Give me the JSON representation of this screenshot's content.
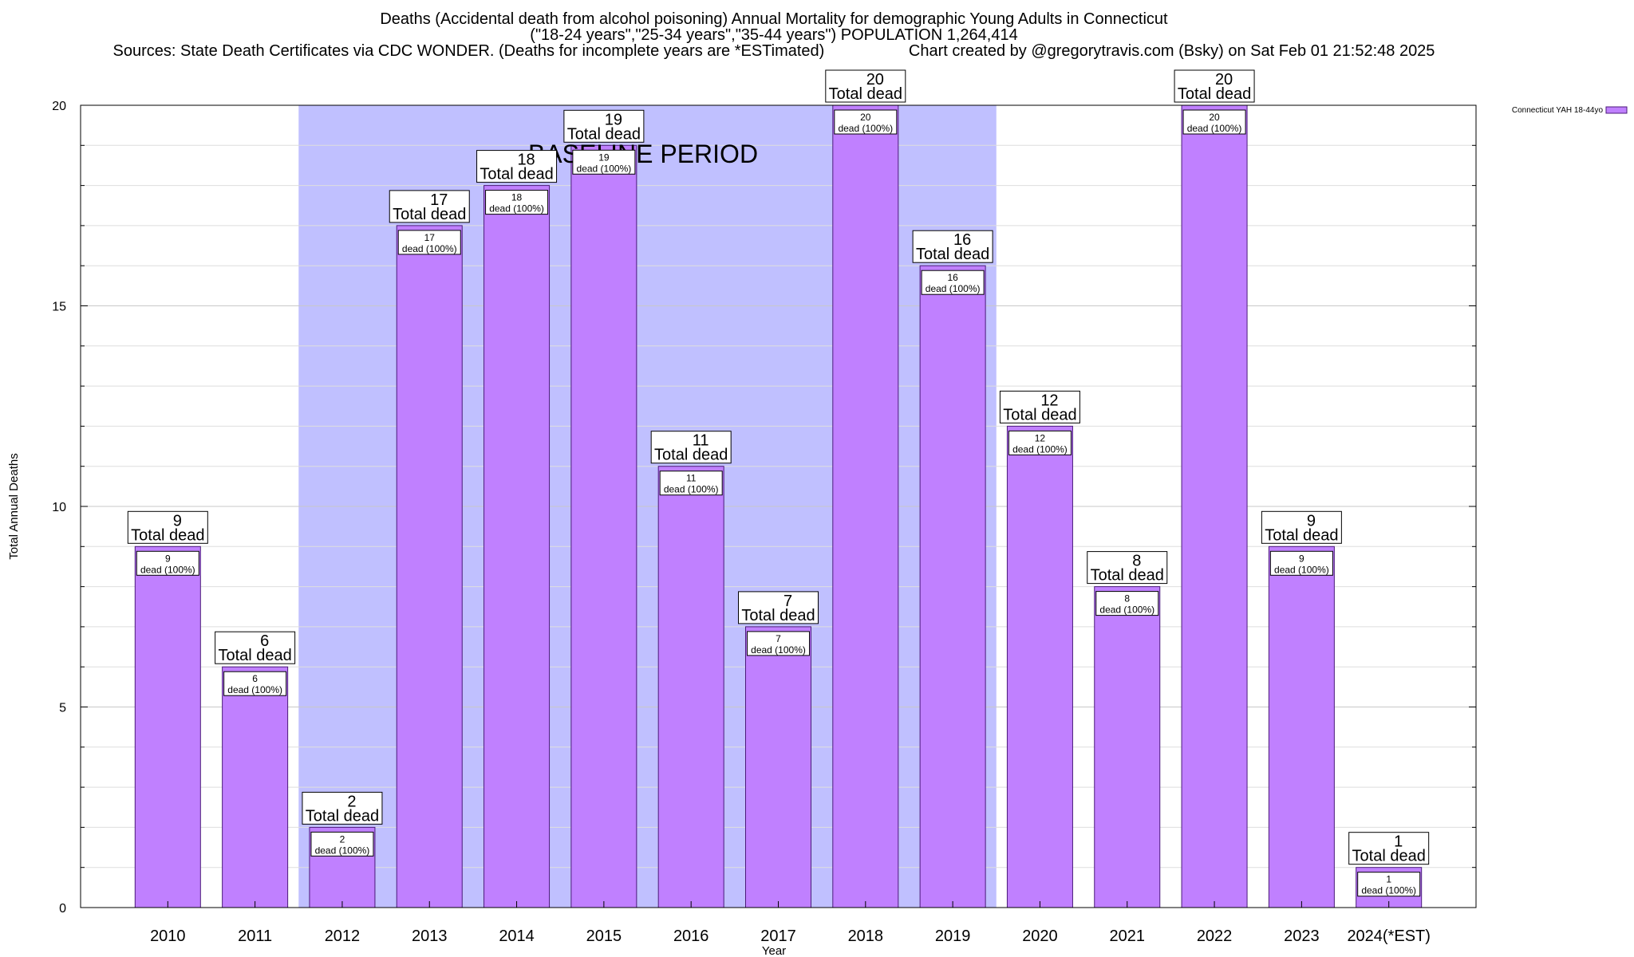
{
  "chart_data": {
    "type": "bar",
    "title": "Deaths (Accidental death from alcohol poisoning) Annual Mortality for demographic Young Adults in Connecticut",
    "subtitle": "(\"18-24 years\",\"25-34 years\",\"35-44 years\") POPULATION 1,264,414",
    "sources_line": "Sources: State Death Certificates via CDC WONDER. (Deaths for incomplete years are *ESTimated)                   Chart created by @gregorytravis.com (Bsky) on Sat Feb 01 21:52:48 2025",
    "xlabel": "Year",
    "ylabel": "Total Annual Deaths",
    "ylim": [
      0,
      20
    ],
    "yticks": [
      0,
      5,
      10,
      15,
      20
    ],
    "minor_grid_step": 1,
    "grid": true,
    "categories": [
      "2010",
      "2011",
      "2012",
      "2013",
      "2014",
      "2015",
      "2016",
      "2017",
      "2018",
      "2019",
      "2020",
      "2021",
      "2022",
      "2023",
      "2024(*EST)"
    ],
    "series": [
      {
        "name": "Connecticut YAH 18-44yo",
        "color": "#c080ff",
        "values": [
          9,
          6,
          2,
          17,
          18,
          19,
          11,
          7,
          20,
          16,
          12,
          8,
          20,
          9,
          1
        ]
      }
    ],
    "total_label_suffix": "Total dead",
    "inner_label_suffix": "dead (100%)",
    "baseline": {
      "label": "BASELINE PERIOD",
      "from": "2012",
      "to": "2019",
      "color": "#c0c0ff"
    },
    "legend_placement": "top-right"
  }
}
